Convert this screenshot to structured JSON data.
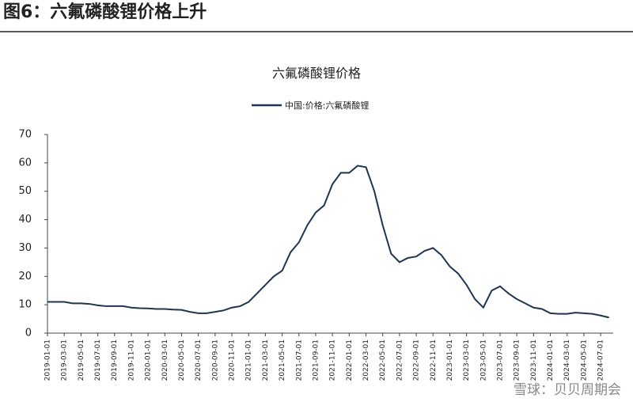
{
  "header": {
    "title": "图6：六氟磷酸锂价格上升"
  },
  "watermark": "雪球：贝贝周期会",
  "chart_data": {
    "type": "line",
    "title": "六氟磷酸锂价格",
    "categories": [
      "2019-01-01",
      null,
      "2019-03-01",
      null,
      "2019-05-01",
      null,
      "2019-07-01",
      null,
      "2019-09-01",
      null,
      "2019-11-01",
      null,
      "2020-01-01",
      null,
      "2020-03-01",
      null,
      "2020-05-01",
      null,
      "2020-07-01",
      null,
      "2020-09-01",
      null,
      "2020-11-01",
      null,
      "2021-01-01",
      null,
      "2021-03-01",
      null,
      "2021-05-01",
      null,
      "2021-07-01",
      null,
      "2021-09-01",
      null,
      "2021-11-01",
      null,
      "2022-01-01",
      null,
      "2022-03-01",
      null,
      "2022-05-01",
      null,
      "2022-07-01",
      null,
      "2022-09-01",
      null,
      "2022-11-01",
      null,
      "2023-01-01",
      null,
      "2023-03-01",
      null,
      "2023-05-01",
      null,
      "2023-07-01",
      null,
      "2023-09-01",
      null,
      "2023-11-01",
      null,
      "2024-01-01",
      null,
      "2024-03-01",
      null,
      "2024-05-01",
      null,
      "2024-07-01",
      null
    ],
    "series": [
      {
        "name": "中国:价格:六氟磷酸锂",
        "color": "#1f3550",
        "values": [
          11,
          11,
          11,
          10.5,
          10.5,
          10.3,
          9.8,
          9.5,
          9.5,
          9.5,
          9,
          8.8,
          8.7,
          8.5,
          8.5,
          8.3,
          8.2,
          7.5,
          7,
          7,
          7.5,
          8,
          9,
          9.5,
          11,
          14,
          17,
          20,
          22,
          28.5,
          32,
          38,
          42.5,
          45,
          52.5,
          56.5,
          56.5,
          59,
          58.5,
          50,
          38,
          28,
          25,
          26.5,
          27,
          29,
          30,
          27.5,
          23.5,
          21,
          17,
          12,
          9,
          15,
          16.5,
          14,
          12,
          10.5,
          9,
          8.5,
          7,
          6.8,
          6.8,
          7.2,
          7,
          6.8,
          6.2,
          5.5
        ]
      }
    ],
    "ylim": [
      0,
      70
    ],
    "yticks": [
      0,
      10,
      20,
      30,
      40,
      50,
      60,
      70
    ],
    "grid": false
  }
}
